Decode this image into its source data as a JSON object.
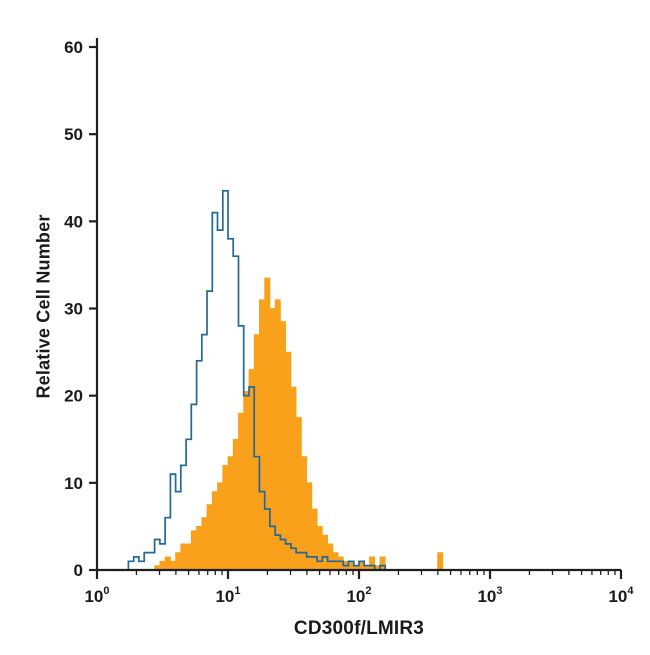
{
  "colors": {
    "axis": "#1f1f1f",
    "background": "#ffffff",
    "blue_outline": "#226899",
    "orange_fill": "#F9A11B"
  },
  "chart_data": {
    "type": "area",
    "subtype": "flow-cytometry-overlay-histogram",
    "title": "",
    "xlabel": "CD300f/LMIR3",
    "ylabel": "Relative Cell Number",
    "x_scale": "log10",
    "x_range_log": [
      0,
      4
    ],
    "ylim": [
      0,
      60
    ],
    "grid": "off",
    "legend": "none",
    "y_ticks": [
      0,
      10,
      20,
      30,
      40,
      50,
      60
    ],
    "y_tick_labels": [
      "0",
      "10",
      "20",
      "30",
      "40",
      "50",
      "60"
    ],
    "x_tick_decades": [
      0,
      1,
      2,
      3,
      4
    ],
    "x_tick_labels": [
      {
        "base": "10",
        "exp": "0"
      },
      {
        "base": "10",
        "exp": "1"
      },
      {
        "base": "10",
        "exp": "2"
      },
      {
        "base": "10",
        "exp": "3"
      },
      {
        "base": "10",
        "exp": "4"
      }
    ],
    "bin_log_width": 0.04,
    "series": [
      {
        "name": "filled-histogram-orange",
        "style": "filled",
        "color": "#F9A11B",
        "values": [
          0,
          0,
          0,
          0,
          0,
          0,
          0,
          0,
          0,
          0,
          0,
          0.5,
          1,
          1.5,
          1,
          2,
          3,
          3,
          4.5,
          5,
          6,
          7.5,
          9,
          10,
          12,
          13,
          15,
          18,
          20.5,
          23,
          27,
          31,
          33.5,
          30,
          31,
          28.5,
          25,
          21,
          17.5,
          13,
          10,
          7,
          5,
          4,
          3,
          2,
          1.5,
          1,
          1,
          0.5,
          1,
          0.5,
          1.5,
          0.5,
          1.5,
          0,
          0,
          0,
          0,
          0,
          0,
          0,
          0,
          0,
          0,
          2,
          0,
          0,
          0,
          0,
          0,
          0,
          0,
          0,
          0,
          0,
          0,
          0,
          0,
          0,
          0,
          0,
          0,
          0,
          0,
          0,
          0,
          0,
          0,
          0,
          0,
          0,
          0,
          0,
          0,
          0,
          0,
          0,
          0,
          0
        ]
      },
      {
        "name": "open-histogram-blue",
        "style": "outline",
        "color": "#2268),99",
        "values": [
          0,
          0,
          0,
          0,
          0,
          0,
          1,
          1.5,
          1,
          2,
          2,
          3.5,
          3,
          6,
          11,
          9,
          12,
          15,
          19,
          24,
          27,
          32,
          41,
          39,
          43.5,
          38,
          36,
          28,
          20,
          21,
          13,
          9,
          7,
          5,
          4,
          3.5,
          3,
          2.5,
          2,
          2,
          1.5,
          1.5,
          1,
          1.5,
          1,
          1,
          1,
          0.5,
          1,
          0.5,
          1,
          0.5,
          0.5,
          0,
          0.5,
          0,
          0,
          0,
          0,
          0,
          0,
          0,
          0,
          0,
          0,
          0,
          0,
          0,
          0,
          0,
          0,
          0,
          0,
          0,
          0,
          0,
          0,
          0,
          0,
          0,
          0,
          0,
          0,
          0,
          0,
          0,
          0,
          0,
          0,
          0,
          0,
          0,
          0,
          0,
          0,
          0,
          0,
          0,
          0,
          0
        ]
      }
    ]
  }
}
